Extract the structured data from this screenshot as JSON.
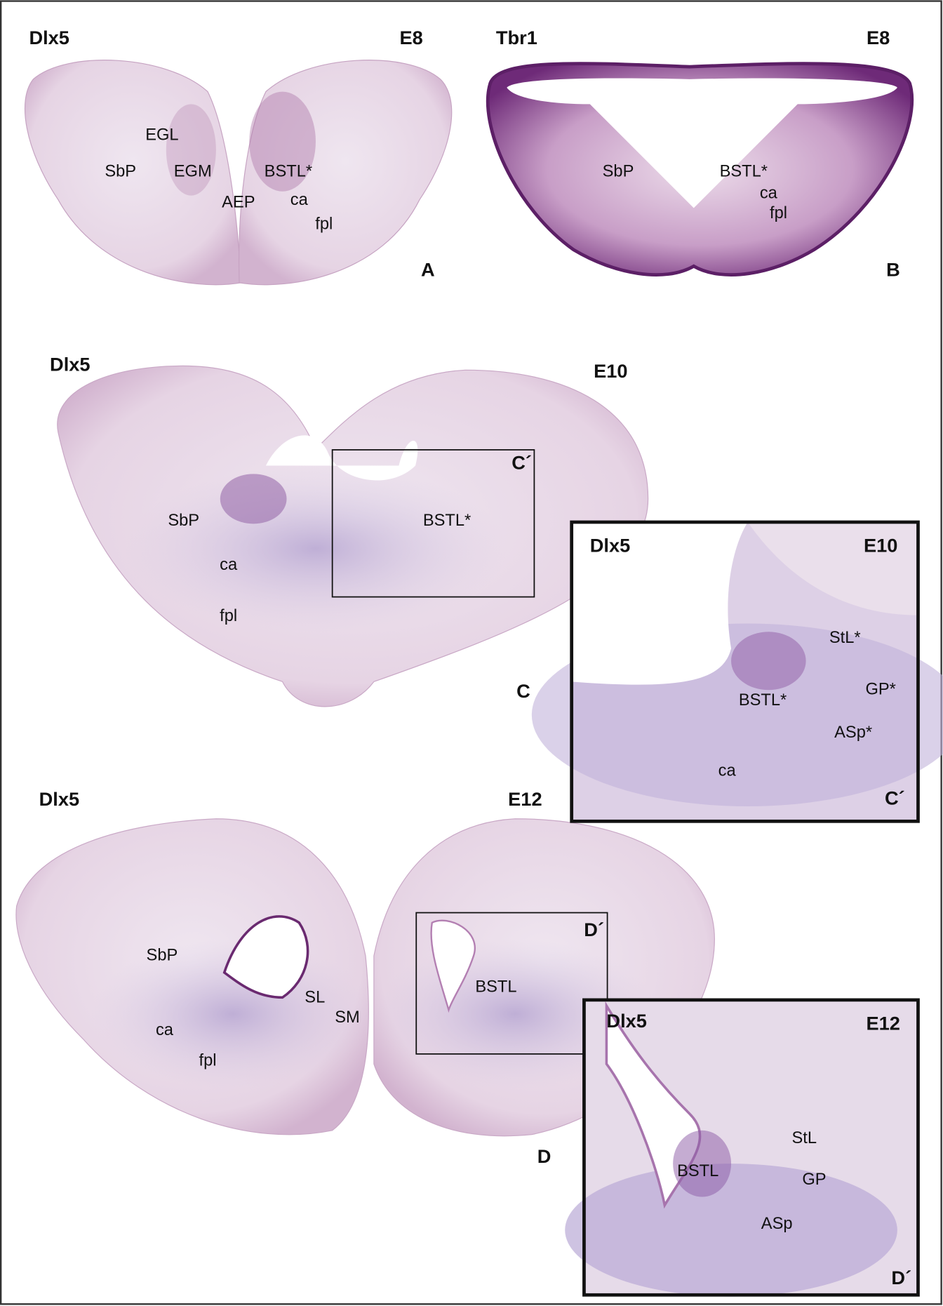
{
  "panels": [
    {
      "stain": "Dlx5",
      "age": "E8",
      "letter": "A",
      "labels": [
        "EGL",
        "SbP",
        "EGM",
        "BSTL*",
        "AEP",
        "ca",
        "fpl"
      ]
    },
    {
      "stain": "Tbr1",
      "age": "E8",
      "letter": "B",
      "labels": [
        "SbP",
        "BSTL*",
        "ca",
        "fpl"
      ]
    },
    {
      "stain": "Dlx5",
      "age": "E10",
      "letter": "C",
      "box_label": "C´",
      "labels": [
        "SbP",
        "BSTL*",
        "ca",
        "fpl"
      ]
    },
    {
      "stain": "Dlx5",
      "age": "E10",
      "letter": "C´",
      "labels": [
        "StL*",
        "GP*",
        "BSTL*",
        "ASp*",
        "ca"
      ]
    },
    {
      "stain": "Dlx5",
      "age": "E12",
      "letter": "D",
      "box_label": "D´",
      "labels": [
        "SbP",
        "SL",
        "SM",
        "ca",
        "fpl",
        "BSTL"
      ]
    },
    {
      "stain": "Dlx5",
      "age": "E12",
      "letter": "D´",
      "labels": [
        "StL",
        "GP",
        "BSTL",
        "ASp"
      ]
    }
  ]
}
